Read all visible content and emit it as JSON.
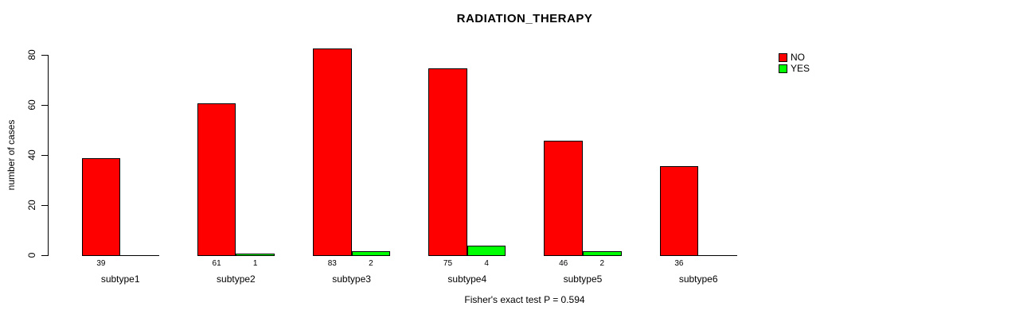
{
  "title": "RADIATION_THERAPY",
  "y_axis": {
    "label": "number of cases",
    "tick_labels": [
      "0",
      "20",
      "40",
      "60",
      "80"
    ]
  },
  "footer": "Fisher's exact test P = 0.594",
  "legend": {
    "items": [
      {
        "label": "NO",
        "color": "#FF0000"
      },
      {
        "label": "YES",
        "color": "#00FF00"
      }
    ]
  },
  "colors": {
    "no_bar": "#FF0000",
    "yes_bar": "#00FF00",
    "axis": "#000000",
    "background": "#FFFFFF"
  },
  "chart_data": {
    "type": "bar",
    "title": "RADIATION_THERAPY",
    "categories": [
      "subtype1",
      "subtype2",
      "subtype3",
      "subtype4",
      "subtype5",
      "subtype6"
    ],
    "series": [
      {
        "name": "NO",
        "color": "#FF0000",
        "values": [
          39,
          61,
          83,
          75,
          46,
          36
        ]
      },
      {
        "name": "YES",
        "color": "#00FF00",
        "values": [
          0,
          1,
          2,
          4,
          2,
          0
        ]
      }
    ],
    "bar_value_labels_shown": [
      [
        "39",
        "61",
        "83",
        "75",
        "46",
        "36"
      ],
      [
        "",
        "1",
        "2",
        "4",
        "2",
        ""
      ]
    ],
    "xlabel": "",
    "ylabel": "number of cases",
    "ylim": [
      0,
      80
    ],
    "yticks": [
      0,
      20,
      40,
      60,
      80
    ],
    "grid": false,
    "legend_position": "top-right",
    "annotation": "Fisher's exact test P = 0.594"
  }
}
